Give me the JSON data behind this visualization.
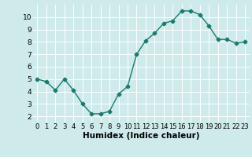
{
  "x": [
    0,
    1,
    2,
    3,
    4,
    5,
    6,
    7,
    8,
    9,
    10,
    11,
    12,
    13,
    14,
    15,
    16,
    17,
    18,
    19,
    20,
    21,
    22,
    23
  ],
  "y": [
    5.0,
    4.8,
    4.1,
    5.0,
    4.1,
    3.0,
    2.2,
    2.2,
    2.4,
    3.8,
    4.4,
    7.0,
    8.1,
    8.7,
    9.5,
    9.7,
    10.5,
    10.5,
    10.2,
    9.3,
    8.2,
    8.2,
    7.9,
    8.0
  ],
  "line_color": "#1a7a6e",
  "marker": "D",
  "markersize": 2.5,
  "linewidth": 1.0,
  "bg_color": "#ceeaea",
  "grid_color": "#ffffff",
  "xlabel": "Humidex (Indice chaleur)",
  "xlabel_fontsize": 7.5,
  "xtick_fontsize": 6,
  "ytick_fontsize": 6.5,
  "xlim": [
    -0.5,
    23.5
  ],
  "ylim": [
    1.5,
    11.0
  ],
  "yticks": [
    2,
    3,
    4,
    5,
    6,
    7,
    8,
    9,
    10
  ],
  "xticks": [
    0,
    1,
    2,
    3,
    4,
    5,
    6,
    7,
    8,
    9,
    10,
    11,
    12,
    13,
    14,
    15,
    16,
    17,
    18,
    19,
    20,
    21,
    22,
    23
  ]
}
